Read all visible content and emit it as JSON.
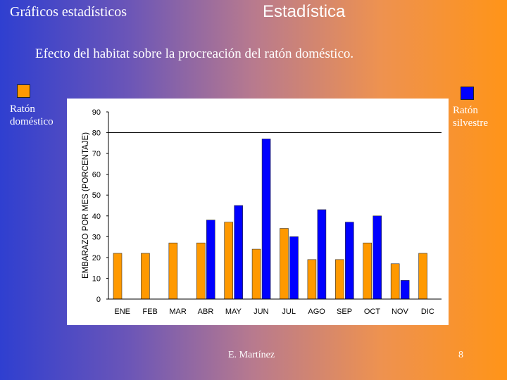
{
  "header": {
    "left_title": "Gráficos estadísticos",
    "center_title": "Estadística"
  },
  "subtitle": "Efecto del habitat sobre la procreación del ratón doméstico.",
  "legend": {
    "left_label": "Ratón doméstico",
    "right_label": "Ratón silvestre"
  },
  "footer": {
    "author": "E. Martínez",
    "page": "8"
  },
  "colors": {
    "domestic": "#ff9900",
    "wild": "#0000ff"
  },
  "chart_data": {
    "type": "bar",
    "title": "",
    "xlabel": "",
    "ylabel": "EMBARAZO POR MES (PORCENTAJE)",
    "ylim": [
      0,
      90
    ],
    "yticks": [
      0,
      10,
      20,
      30,
      40,
      50,
      60,
      70,
      80,
      90
    ],
    "gridline_at": 80,
    "categories": [
      "ENE",
      "FEB",
      "MAR",
      "ABR",
      "MAY",
      "JUN",
      "JUL",
      "AGO",
      "SEP",
      "OCT",
      "NOV",
      "DIC"
    ],
    "series": [
      {
        "name": "Ratón doméstico",
        "color": "#ff9900",
        "values": [
          22,
          22,
          27,
          27,
          37,
          24,
          34,
          19,
          19,
          27,
          17,
          22
        ]
      },
      {
        "name": "Ratón silvestre",
        "color": "#0000ff",
        "values": [
          null,
          null,
          null,
          38,
          45,
          77,
          30,
          43,
          37,
          40,
          9,
          null
        ]
      }
    ]
  }
}
